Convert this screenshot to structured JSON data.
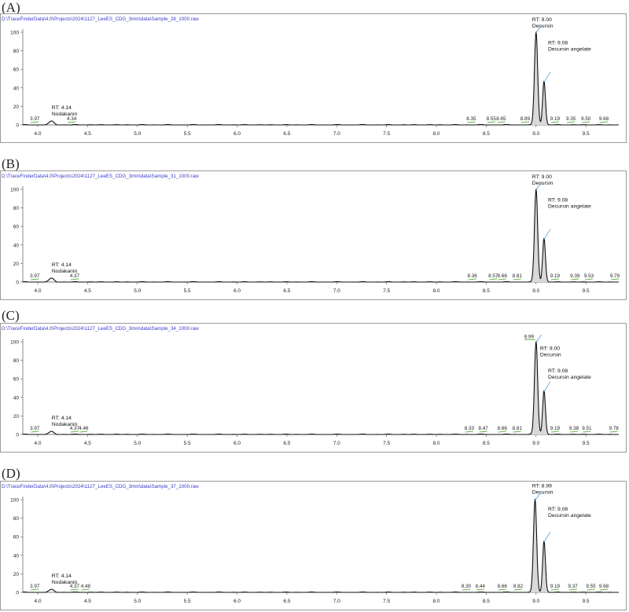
{
  "chart_data": [
    {
      "type": "line",
      "panel_label": "(A)",
      "file_path": "D:\\TraceFinderData\\4.0\\Projects\\2024\\1127_LeeES_CDG_3min\\data\\Sample_28_1000.raw",
      "xlim": [
        3.85,
        9.83
      ],
      "ylim": [
        0,
        100
      ],
      "x_ticks": [
        "4.0",
        "4.5",
        "5.0",
        "5.5",
        "6.0",
        "6.5",
        "7.0",
        "7.5",
        "8.0",
        "8.5",
        "9.0",
        "9.5"
      ],
      "y_ticks": [
        "0",
        "20",
        "40",
        "60",
        "80",
        "100"
      ],
      "peaks": [
        {
          "rt": 4.14,
          "height": 4
        },
        {
          "rt": 9.0,
          "height": 100
        },
        {
          "rt": 9.08,
          "height": 47
        }
      ],
      "baseline_labels": [
        "3.97",
        "4.34",
        "8.35",
        "8.55",
        "8.65",
        "8.89",
        "9.19",
        "9.35",
        "9.50",
        "9.68"
      ],
      "baseline_x": [
        3.97,
        4.34,
        8.35,
        8.55,
        8.65,
        8.89,
        9.19,
        9.35,
        9.5,
        9.68
      ],
      "annotations": [
        {
          "lines": [
            "RT: 4.14",
            "Nodakanin"
          ],
          "x": 4.14,
          "y": 17
        },
        {
          "lines": [
            "RT: 9.00",
            "Decursin"
          ],
          "x": 8.96,
          "y": 112
        },
        {
          "lines": [
            "RT: 9.08",
            "Decursin angelate"
          ],
          "x": 9.12,
          "y": 87
        }
      ]
    },
    {
      "type": "line",
      "panel_label": "(B)",
      "file_path": "D:\\TraceFinderData\\4.0\\Projects\\2024\\1127_LeeES_CDG_3min\\data\\Sample_31_1000.raw",
      "xlim": [
        3.85,
        9.83
      ],
      "ylim": [
        0,
        100
      ],
      "x_ticks": [
        "4.0",
        "4.5",
        "5.0",
        "5.5",
        "6.0",
        "6.5",
        "7.0",
        "7.5",
        "8.0",
        "8.5",
        "9.0",
        "9.5"
      ],
      "y_ticks": [
        "0",
        "20",
        "40",
        "60",
        "80",
        "100"
      ],
      "peaks": [
        {
          "rt": 4.14,
          "height": 4
        },
        {
          "rt": 9.0,
          "height": 100
        },
        {
          "rt": 9.08,
          "height": 47
        }
      ],
      "baseline_labels": [
        "3.97",
        "4.37",
        "8.36",
        "8.57",
        "8.66",
        "8.81",
        "9.19",
        "9.39",
        "9.53",
        "9.79"
      ],
      "baseline_x": [
        3.97,
        4.37,
        8.36,
        8.57,
        8.66,
        8.81,
        9.19,
        9.39,
        9.53,
        9.79
      ],
      "annotations": [
        {
          "lines": [
            "RT: 4.14",
            "Nodakanin"
          ],
          "x": 4.14,
          "y": 17
        },
        {
          "lines": [
            "RT: 9.00",
            "Decursin"
          ],
          "x": 8.96,
          "y": 112
        },
        {
          "lines": [
            "RT: 9.08",
            "Decursin angelate"
          ],
          "x": 9.12,
          "y": 87
        }
      ]
    },
    {
      "type": "line",
      "panel_label": "(C)",
      "file_path": "D:\\TraceFinderData\\4.0\\Projects\\2024\\1127_LeeES_CDG_3min\\data\\Sample_34_1000.raw",
      "xlim": [
        3.85,
        9.83
      ],
      "ylim": [
        0,
        100
      ],
      "x_ticks": [
        "4.0",
        "4.5",
        "5.0",
        "5.5",
        "6.0",
        "6.5",
        "7.0",
        "7.5",
        "8.0",
        "8.5",
        "9.0",
        "9.5"
      ],
      "y_ticks": [
        "0",
        "20",
        "40",
        "60",
        "80",
        "100"
      ],
      "peaks": [
        {
          "rt": 4.14,
          "height": 3
        },
        {
          "rt": 9.0,
          "height": 100
        },
        {
          "rt": 9.08,
          "height": 47
        }
      ],
      "baseline_labels": [
        "3.97",
        "4.37",
        "4.46",
        "8.33",
        "8.47",
        "8.66",
        "8.81",
        "9.19",
        "9.38",
        "9.51",
        "9.78"
      ],
      "baseline_x": [
        3.97,
        4.37,
        4.46,
        8.33,
        8.47,
        8.66,
        8.81,
        9.19,
        9.38,
        9.51,
        9.78
      ],
      "top_label": {
        "text": "8.99",
        "x": 8.93,
        "y": 104
      },
      "annotations": [
        {
          "lines": [
            "RT: 4.14",
            "Nodakanin"
          ],
          "x": 4.14,
          "y": 16
        },
        {
          "lines": [
            "RT: 9.00",
            "Decursin"
          ],
          "x": 9.04,
          "y": 91
        },
        {
          "lines": [
            "RT: 9.08",
            "Decursin angelate"
          ],
          "x": 9.12,
          "y": 67
        }
      ]
    },
    {
      "type": "line",
      "panel_label": "(D)",
      "file_path": "D:\\TraceFinderData\\4.0\\Projects\\2024\\1127_LeeES_CDG_3min\\data\\Sample_37_1000.raw",
      "xlim": [
        3.85,
        9.83
      ],
      "ylim": [
        0,
        100
      ],
      "x_ticks": [
        "4.0",
        "4.5",
        "5.0",
        "5.5",
        "6.0",
        "6.5",
        "7.0",
        "7.5",
        "8.0",
        "8.5",
        "9.0",
        "9.5"
      ],
      "y_ticks": [
        "0",
        "20",
        "40",
        "60",
        "80",
        "100"
      ],
      "peaks": [
        {
          "rt": 4.14,
          "height": 3
        },
        {
          "rt": 8.99,
          "height": 100
        },
        {
          "rt": 9.08,
          "height": 55
        }
      ],
      "baseline_labels": [
        "3.97",
        "4.37",
        "4.48",
        "8.30",
        "8.44",
        "8.66",
        "8.82",
        "9.19",
        "9.37",
        "9.55",
        "9.68"
      ],
      "baseline_x": [
        3.97,
        4.37,
        4.48,
        8.3,
        8.44,
        8.66,
        8.82,
        9.19,
        9.37,
        9.55,
        9.68
      ],
      "annotations": [
        {
          "lines": [
            "RT: 4.14",
            "Nodakanin"
          ],
          "x": 4.14,
          "y": 16
        },
        {
          "lines": [
            "RT: 8.99",
            "Decursin"
          ],
          "x": 8.96,
          "y": 113
        },
        {
          "lines": [
            "RT: 9.08",
            "Decursin angelate"
          ],
          "x": 9.12,
          "y": 88
        }
      ]
    }
  ]
}
